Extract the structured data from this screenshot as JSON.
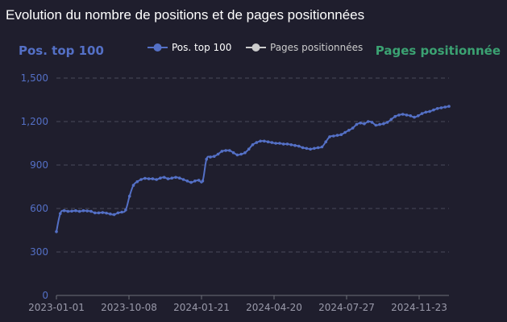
{
  "title": "Evolution du nombre de positions et de pages positionnées",
  "colors": {
    "background": "#1f1e2d",
    "series_primary": "#5470c6",
    "series_secondary": "#cccccc",
    "left_axis_label": "#5470c6",
    "right_axis_label": "#3ba272",
    "grid": "#4a4a5a",
    "x_tick": "#9a9aaa"
  },
  "chart_data": {
    "type": "line",
    "yaxis_left_name": "Pos. top 100",
    "yaxis_right_name": "Pages positionnée",
    "ylim": [
      0,
      1500
    ],
    "yticks": [
      "0",
      "300",
      "600",
      "900",
      "1,200",
      "1,500"
    ],
    "xticks": [
      "2023-01-01",
      "2023-10-08",
      "2024-01-21",
      "2024-04-20",
      "2024-07-27",
      "2024-11-23"
    ],
    "grid": true,
    "legend_position": "top-center",
    "series": [
      {
        "name": "Pos. top 100",
        "values": [
          440,
          565,
          585,
          580,
          582,
          585,
          580,
          585,
          583,
          580,
          570,
          570,
          572,
          568,
          562,
          558,
          570,
          575,
          590,
          685,
          760,
          785,
          800,
          808,
          805,
          805,
          800,
          810,
          815,
          805,
          810,
          815,
          810,
          800,
          790,
          780,
          790,
          795,
          790,
          940,
          955,
          960,
          975,
          995,
          1000,
          1000,
          985,
          970,
          975,
          985,
          1010,
          1040,
          1055,
          1065,
          1065,
          1060,
          1055,
          1050,
          1050,
          1045,
          1045,
          1040,
          1035,
          1030,
          1020,
          1015,
          1010,
          1015,
          1020,
          1025,
          1060,
          1095,
          1100,
          1105,
          1110,
          1125,
          1140,
          1155,
          1180,
          1190,
          1185,
          1200,
          1195,
          1175,
          1180,
          1185,
          1195,
          1215,
          1235,
          1245,
          1250,
          1245,
          1240,
          1230,
          1240,
          1255,
          1265,
          1270,
          1280,
          1290,
          1295,
          1300,
          1305
        ]
      },
      {
        "name": "Pages positionnées",
        "values": []
      }
    ]
  }
}
